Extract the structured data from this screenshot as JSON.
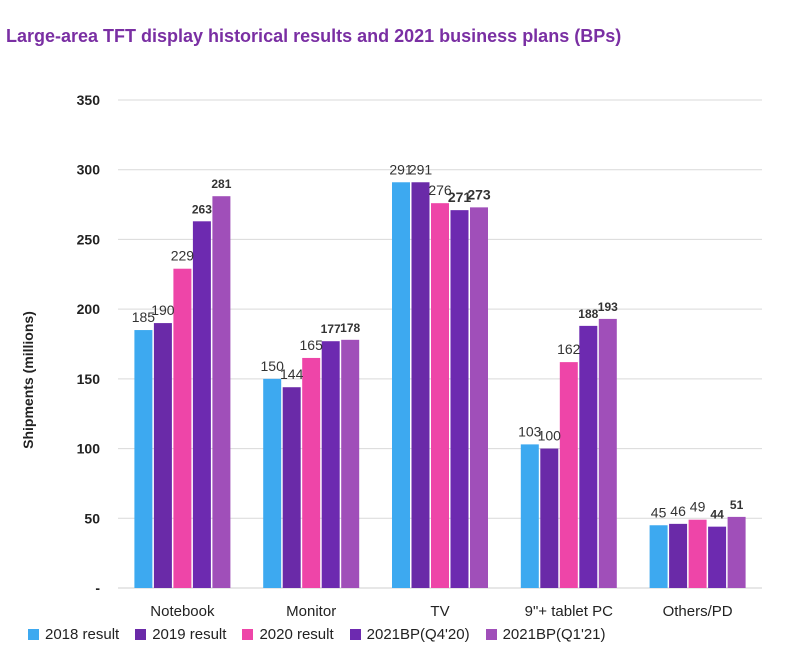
{
  "chart_data": {
    "type": "bar",
    "title": "Large-area TFT display historical results and 2021 business plans (BPs)",
    "ylabel": "Shipments (millions)",
    "xlabel": "",
    "ylim": [
      0,
      350
    ],
    "yticks": [
      350,
      300,
      250,
      200,
      150,
      100,
      50
    ],
    "baseline_tick_label": "-",
    "categories": [
      "Notebook",
      "Monitor",
      "TV",
      "9\"+ tablet PC",
      "Others/PD"
    ],
    "series": [
      {
        "name": "2018 result",
        "color": "#3da9f0",
        "values": [
          185,
          150,
          291,
          103,
          45
        ]
      },
      {
        "name": "2019 result",
        "color": "#6a2aa8",
        "values": [
          190,
          144,
          291,
          100,
          46
        ]
      },
      {
        "name": "2020 result",
        "color": "#ee45a8",
        "values": [
          229,
          165,
          276,
          162,
          49
        ]
      },
      {
        "name": "2021BP(Q4'20)",
        "color": "#6d2ab0",
        "values": [
          263,
          177,
          271,
          188,
          44
        ]
      },
      {
        "name": "2021BP(Q1'21)",
        "color": "#a04fb9",
        "values": [
          281,
          178,
          273,
          193,
          51
        ]
      }
    ],
    "grid": true,
    "legend_position": "bottom"
  }
}
